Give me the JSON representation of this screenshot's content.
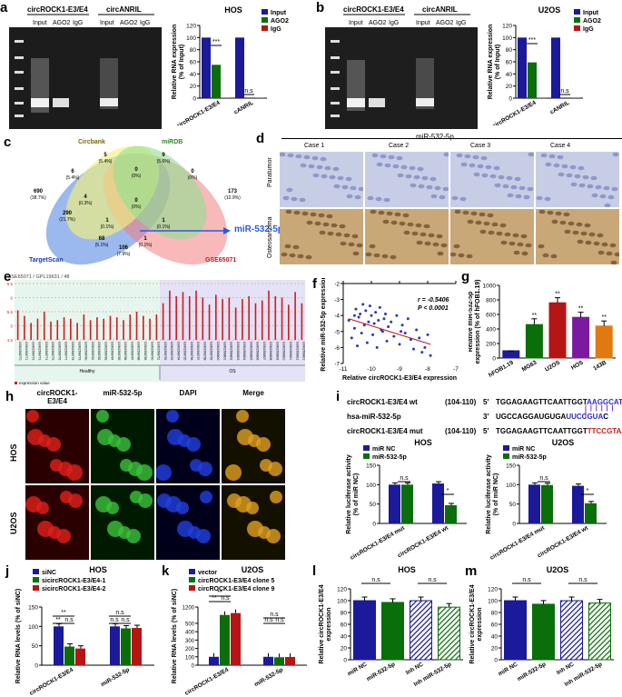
{
  "panels": {
    "a": "a",
    "b": "b",
    "c": "c",
    "d": "d",
    "e": "e",
    "f": "f",
    "g": "g",
    "h": "h",
    "i": "i",
    "j": "j",
    "k": "k",
    "l": "l",
    "m": "m"
  },
  "gel_a": {
    "group1": "circROCK1-E3/E4",
    "group2": "circANRIL",
    "lanes1": [
      "Input",
      "AGO2",
      "IgG"
    ],
    "lanes2": [
      "Input",
      "AGO2",
      "IgG"
    ]
  },
  "gel_b": {
    "group1": "circROCK1-E3/E4",
    "group2": "circANRIL",
    "lanes1": [
      "Input",
      "AGO2",
      "IgG"
    ],
    "lanes2": [
      "Input",
      "AGO2",
      "IgG"
    ]
  },
  "venn": {
    "sets": [
      "Circbank",
      "miRDB",
      "TargetScan",
      "GSE65071"
    ],
    "target": "miR-532-5p",
    "regions": [
      "5\n(5.4%)",
      "9\n(5.6%)",
      "690\n(38.7%)",
      "6\n(5.4%)",
      "0\n(0%)",
      "0\n(0%)",
      "173\n(10.9%)",
      "4\n(0.3%)",
      "0\n(0%)",
      "290\n(21.7%)",
      "1\n(0.1%)",
      "1\n(0.1%)",
      "68\n(5.1%)",
      "1\n(0.1%)",
      "106\n(7.9%)"
    ]
  },
  "ihc": {
    "title": "miR-532-5p",
    "cases": [
      "Case 1",
      "Case 2",
      "Case 3",
      "Case 4"
    ],
    "rows": [
      "Paratumor",
      "Osteosarcoma"
    ]
  },
  "geo": {
    "title": "GSE65071 / GPL19631 / 48",
    "groups": [
      "Healthy",
      "OS"
    ],
    "legend": "expression value"
  },
  "fluor": {
    "cols": [
      "circROCK1-\nE3/E4",
      "miR-532-5p",
      "DAPI",
      "Merge"
    ],
    "rows": [
      "HOS",
      "U2OS"
    ]
  },
  "seq": {
    "rows": [
      {
        "label": "circROCK1-E3/E4 wt",
        "pos": "(104-110)",
        "end": "5'",
        "seq": "TGGAGAAGTTCAATTGGT",
        "hl": "AAGGCATA",
        "tail": "...."
      },
      {
        "label": "hsa-miR-532-5p",
        "pos": "",
        "end": "3'",
        "seq": "UGCCAGGAUGUGA",
        "hl": "UUCCGUA",
        "tail": "C"
      },
      {
        "label": "circROCK1-E3/E4 mut",
        "pos": "(104-110)",
        "end": "5'",
        "seq": "TGGAGAAGTTCAATTGGT",
        "hl": "TTCCGTA",
        "tail": "A ...."
      }
    ]
  },
  "chart_data": [
    {
      "id": "a",
      "type": "bar",
      "title": "HOS",
      "ylabel": "Relative RNA expression\n(% of Input)",
      "ylim": [
        0,
        120
      ],
      "yticks": [
        0,
        20,
        40,
        60,
        80,
        100,
        120
      ],
      "categories": [
        "circROCK1-E3/E4",
        "cANRIL"
      ],
      "series": [
        {
          "name": "Input",
          "color": "#1a1a9a",
          "values": [
            100,
            100
          ]
        },
        {
          "name": "AGO2",
          "color": "#0a6e0a",
          "values": [
            55,
            0
          ]
        },
        {
          "name": "IgG",
          "color": "#b51515",
          "values": [
            0.5,
            0.5
          ]
        }
      ],
      "annotations": [
        "***",
        "n.s"
      ],
      "legend": "top-right"
    },
    {
      "id": "b",
      "type": "bar",
      "title": "U2OS",
      "ylabel": "Relative RNA expression\n(% of Input)",
      "ylim": [
        0,
        120
      ],
      "yticks": [
        0,
        20,
        40,
        60,
        80,
        100,
        120
      ],
      "categories": [
        "circROCK1-E3/E4",
        "cANRIL"
      ],
      "series": [
        {
          "name": "Input",
          "color": "#1a1a9a",
          "values": [
            100,
            100
          ]
        },
        {
          "name": "AGO2",
          "color": "#0a6e0a",
          "values": [
            59,
            0
          ]
        },
        {
          "name": "IgG",
          "color": "#b51515",
          "values": [
            0.5,
            0.5
          ]
        }
      ],
      "annotations": [
        "***",
        "n.s"
      ],
      "legend": "top-right"
    },
    {
      "id": "e",
      "type": "bar",
      "ylim": [
        4.5,
        6.5
      ],
      "yticks": [
        "4.5",
        "5",
        "5.5",
        "6",
        "6.5"
      ],
      "values": [
        5.55,
        5.35,
        5.1,
        5.25,
        5.5,
        5.15,
        5.2,
        5.3,
        5.25,
        5.1,
        5.4,
        5.2,
        5.3,
        5.25,
        5.35,
        5.3,
        5.2,
        5.4,
        5.5,
        5.35,
        5.25,
        5.4,
        5.8,
        6.25,
        6.05,
        6.2,
        6.05,
        6.25,
        6.0,
        5.75,
        6.1,
        5.95,
        6.0,
        5.65,
        5.95,
        6.05,
        5.8,
        5.9,
        6.25,
        6.05,
        6.0,
        5.75,
        6.2,
        5.8
      ],
      "healthy_count": 22
    },
    {
      "id": "f",
      "type": "scatter",
      "xlabel": "Relative circROCK1-E3/E4 expression",
      "ylabel": "Relative miR-532-5p expression",
      "xlim": [
        -11,
        -7
      ],
      "ylim": [
        -7,
        -2
      ],
      "xticks": [
        -11,
        -10,
        -9,
        -8,
        -7
      ],
      "yticks": [
        -7,
        -6,
        -5,
        -4,
        -3,
        -2
      ],
      "r": "r = -0.5406",
      "p": "P < 0.0001",
      "points": [
        [
          -10.8,
          -4.3
        ],
        [
          -10.7,
          -5.4
        ],
        [
          -10.6,
          -4.8
        ],
        [
          -10.55,
          -3.6
        ],
        [
          -10.5,
          -5.9
        ],
        [
          -10.45,
          -4.1
        ],
        [
          -10.4,
          -3.9
        ],
        [
          -10.35,
          -5.1
        ],
        [
          -10.3,
          -3.3
        ],
        [
          -10.25,
          -4.6
        ],
        [
          -10.2,
          -3.7
        ],
        [
          -10.15,
          -5.7
        ],
        [
          -10.1,
          -4.4
        ],
        [
          -10.05,
          -3.4
        ],
        [
          -10.0,
          -4.0
        ],
        [
          -9.95,
          -5.2
        ],
        [
          -9.9,
          -4.5
        ],
        [
          -9.85,
          -3.8
        ],
        [
          -9.8,
          -6.0
        ],
        [
          -9.75,
          -4.3
        ],
        [
          -9.7,
          -3.5
        ],
        [
          -9.6,
          -5.0
        ],
        [
          -9.55,
          -4.2
        ],
        [
          -9.5,
          -3.9
        ],
        [
          -9.45,
          -5.6
        ],
        [
          -9.4,
          -4.7
        ],
        [
          -9.3,
          -4.4
        ],
        [
          -9.2,
          -5.3
        ],
        [
          -9.1,
          -4.0
        ],
        [
          -9.0,
          -5.8
        ],
        [
          -8.9,
          -4.6
        ],
        [
          -8.8,
          -5.1
        ],
        [
          -8.7,
          -4.2
        ],
        [
          -8.6,
          -5.5
        ],
        [
          -8.5,
          -6.1
        ],
        [
          -8.4,
          -4.9
        ],
        [
          -8.3,
          -5.4
        ],
        [
          -8.2,
          -6.3
        ],
        [
          -8.1,
          -6.0
        ],
        [
          -8.0,
          -5.2
        ],
        [
          -7.9,
          -6.5
        ],
        [
          -10.6,
          -4.0
        ],
        [
          -9.65,
          -4.9
        ],
        [
          -8.95,
          -5.0
        ]
      ],
      "trend": [
        [
          -10.8,
          -4.2
        ],
        [
          -7.9,
          -5.8
        ]
      ]
    },
    {
      "id": "g",
      "type": "bar",
      "ylabel": "Relative miR-532-5p\nexpression (% of hFOB1.19)",
      "ylim": [
        0,
        1000
      ],
      "yticks": [
        0,
        200,
        400,
        600,
        800,
        1000
      ],
      "categories": [
        "hFOB1.19",
        "MG63",
        "U2OS",
        "HOS",
        "143B"
      ],
      "values": [
        100,
        460,
        760,
        560,
        440
      ],
      "errors": [
        0,
        80,
        70,
        70,
        70
      ],
      "colors": [
        "#1a1a9a",
        "#0a6e0a",
        "#b51515",
        "#7a1aa0",
        "#e07a10"
      ],
      "stars": [
        "",
        "**",
        "**",
        "**",
        "**"
      ]
    },
    {
      "id": "i1",
      "type": "bar",
      "title": "HOS",
      "ylabel": "Relative luciferase activity\n(% of miR NC)",
      "ylim": [
        0,
        150
      ],
      "yticks": [
        0,
        50,
        100,
        150
      ],
      "categories": [
        "circROCK1-E3/E4 mut",
        "circROCK1-E3/E4 wt"
      ],
      "series": [
        {
          "name": "miR NC",
          "color": "#1a1a9a",
          "values": [
            100,
            103
          ]
        },
        {
          "name": "miR-532-5p",
          "color": "#0a6e0a",
          "values": [
            100,
            47
          ]
        }
      ],
      "annotations": [
        "n.s",
        "*"
      ]
    },
    {
      "id": "i2",
      "type": "bar",
      "title": "U2OS",
      "ylabel": "Relative luciferase activity\n(% of miR NC)",
      "ylim": [
        0,
        150
      ],
      "yticks": [
        0,
        50,
        100,
        150
      ],
      "categories": [
        "circROCK1-E3/E4 mut",
        "circROCK1-E3/E4 wt"
      ],
      "series": [
        {
          "name": "miR NC",
          "color": "#1a1a9a",
          "values": [
            100,
            97
          ]
        },
        {
          "name": "miR-532-5p",
          "color": "#0a6e0a",
          "values": [
            99,
            52
          ]
        }
      ],
      "annotations": [
        "n.s",
        "*"
      ]
    },
    {
      "id": "j",
      "type": "bar",
      "title": "HOS",
      "ylabel": "Relative RNA levels (% of siNC)",
      "ylim": [
        0,
        150
      ],
      "yticks": [
        0,
        50,
        100,
        150
      ],
      "categories": [
        "circROCK1-E3/E4",
        "miR-532-5p"
      ],
      "series": [
        {
          "name": "siNC",
          "color": "#1a1a9a",
          "values": [
            100,
            100
          ]
        },
        {
          "name": "sicircROCK1-E3/E4-1",
          "color": "#0a6e0a",
          "values": [
            48,
            95
          ]
        },
        {
          "name": "sicircROCK1-E3/E4-2",
          "color": "#b51515",
          "values": [
            43,
            96
          ]
        }
      ],
      "annotations": [
        "**",
        "**",
        "n.s",
        "n.s",
        "n.s",
        "n.s"
      ]
    },
    {
      "id": "k",
      "type": "bar",
      "title": "U2OS",
      "ylabel": "Relative RNA levels (% of siNC)",
      "ylim": [
        0,
        1200
      ],
      "yticks": [
        0,
        100,
        200,
        300,
        400,
        500,
        1200
      ],
      "categories": [
        "circROCK1-E3/E4",
        "miR-532-5p"
      ],
      "series": [
        {
          "name": "vector",
          "color": "#1a1a9a",
          "values": [
            100,
            100
          ]
        },
        {
          "name": "circROCK1-E3/E4 clone 5",
          "color": "#0a6e0a",
          "values": [
            860,
            95
          ]
        },
        {
          "name": "circROCK1-E3/E4 clone 9",
          "color": "#b51515",
          "values": [
            940,
            98
          ]
        }
      ],
      "annotations": [
        "**",
        "**",
        "n.s",
        "n.s",
        "n.s",
        "n.s"
      ]
    },
    {
      "id": "l",
      "type": "bar",
      "title": "HOS",
      "ylabel": "Relative circROCK1-E3/E4\nexpression",
      "ylim": [
        0,
        120
      ],
      "yticks": [
        0,
        20,
        40,
        60,
        80,
        100,
        120
      ],
      "categories": [
        "miR NC",
        "miR-532-5p",
        "Inh NC",
        "Inh miR-532-5p"
      ],
      "values": [
        100,
        97,
        100,
        89
      ],
      "colors": [
        "#1a1a9a",
        "#0a6e0a",
        "#1a1a9a",
        "#0a6e0a"
      ],
      "annotations": [
        "n.s",
        "n.s"
      ]
    },
    {
      "id": "m",
      "type": "bar",
      "title": "U2OS",
      "ylabel": "Relative circROCK1-E3/E4\nexpression",
      "ylim": [
        0,
        120
      ],
      "yticks": [
        0,
        20,
        40,
        60,
        80,
        100,
        120
      ],
      "categories": [
        "miR NC",
        "miR-532-5p",
        "Inh NC",
        "Inh miR-532-5p"
      ],
      "values": [
        100,
        94,
        100,
        96
      ],
      "colors": [
        "#1a1a9a",
        "#0a6e0a",
        "#1a1a9a",
        "#0a6e0a"
      ],
      "annotations": [
        "n.s",
        "n.s"
      ]
    }
  ]
}
